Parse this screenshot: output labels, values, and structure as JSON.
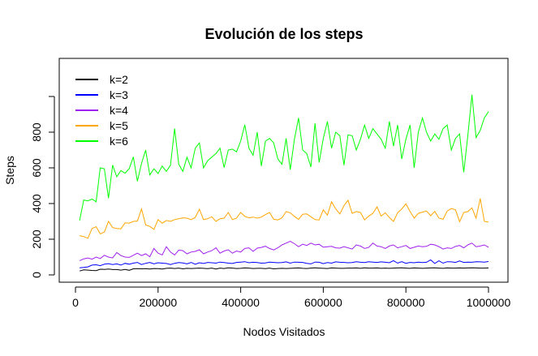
{
  "chart_data": {
    "type": "line",
    "title": "Evolución de los steps",
    "xlabel": "Nodos Visitados",
    "ylabel": "Steps",
    "xlim": [
      10000,
      1000000
    ],
    "ylim": [
      0,
      1050
    ],
    "x_ticks": [
      0,
      200000,
      400000,
      600000,
      800000,
      1000000
    ],
    "x_tick_labels": [
      "0",
      "200000",
      "400000",
      "600000",
      "800000",
      "1000000"
    ],
    "y_ticks": [
      0,
      200,
      400,
      600,
      800,
      1000
    ],
    "y_tick_labels": [
      "0",
      "200",
      "400",
      "600",
      "800",
      ""
    ],
    "grid": false,
    "legend_position": "top-left",
    "x": [
      10000,
      20000,
      30000,
      40000,
      50000,
      60000,
      70000,
      80000,
      90000,
      100000,
      110000,
      120000,
      130000,
      140000,
      150000,
      160000,
      170000,
      180000,
      190000,
      200000,
      210000,
      220000,
      230000,
      240000,
      250000,
      260000,
      270000,
      280000,
      290000,
      300000,
      310000,
      320000,
      330000,
      340000,
      350000,
      360000,
      370000,
      380000,
      390000,
      400000,
      410000,
      420000,
      430000,
      440000,
      450000,
      460000,
      470000,
      480000,
      490000,
      500000,
      510000,
      520000,
      530000,
      540000,
      550000,
      560000,
      570000,
      580000,
      590000,
      600000,
      610000,
      620000,
      630000,
      640000,
      650000,
      660000,
      670000,
      680000,
      690000,
      700000,
      710000,
      720000,
      730000,
      740000,
      750000,
      760000,
      770000,
      780000,
      790000,
      800000,
      810000,
      820000,
      830000,
      840000,
      850000,
      860000,
      870000,
      880000,
      890000,
      900000,
      910000,
      920000,
      930000,
      940000,
      950000,
      960000,
      970000,
      980000,
      990000,
      1000000
    ],
    "series": [
      {
        "name": "k=2",
        "color": "#000000",
        "values": [
          22,
          28,
          27,
          25,
          24,
          32,
          31,
          33,
          30,
          30,
          27,
          31,
          26,
          34,
          35,
          34,
          35,
          33,
          36,
          35,
          33,
          37,
          38,
          36,
          38,
          34,
          37,
          36,
          37,
          38,
          37,
          35,
          38,
          33,
          38,
          36,
          40,
          38,
          36,
          37,
          39,
          38,
          36,
          37,
          37,
          35,
          38,
          34,
          36,
          37,
          36,
          37,
          38,
          39,
          37,
          36,
          38,
          40,
          38,
          37,
          36,
          39,
          38,
          37,
          37,
          38,
          38,
          39,
          37,
          40,
          38,
          38,
          39,
          37,
          38,
          37,
          38,
          39,
          40,
          38,
          37,
          39,
          38,
          37,
          38,
          39,
          40,
          38,
          37,
          39,
          38,
          38,
          39,
          38,
          39,
          40,
          39,
          38,
          38,
          39
        ]
      },
      {
        "name": "k=3",
        "color": "#0000FF",
        "values": [
          40,
          42,
          45,
          55,
          57,
          52,
          60,
          63,
          58,
          62,
          55,
          65,
          60,
          66,
          70,
          58,
          65,
          70,
          62,
          68,
          66,
          64,
          58,
          65,
          69,
          67,
          62,
          70,
          60,
          68,
          64,
          70,
          68,
          66,
          72,
          69,
          66,
          64,
          70,
          72,
          74,
          68,
          71,
          69,
          66,
          67,
          72,
          70,
          68,
          69,
          73,
          66,
          72,
          71,
          70,
          65,
          62,
          72,
          71,
          63,
          69,
          66,
          73,
          71,
          70,
          68,
          69,
          74,
          71,
          69,
          74,
          72,
          70,
          73,
          71,
          68,
          80,
          66,
          74,
          65,
          70,
          68,
          72,
          69,
          71,
          84,
          64,
          79,
          66,
          74,
          73,
          70,
          78,
          70,
          72,
          71,
          74,
          73,
          72,
          75
        ]
      },
      {
        "name": "k=4",
        "color": "#A020F0",
        "values": [
          80,
          90,
          95,
          88,
          100,
          92,
          110,
          100,
          95,
          125,
          108,
          100,
          98,
          110,
          122,
          108,
          118,
          102,
          148,
          122,
          112,
          158,
          128,
          112,
          139,
          136,
          118,
          128,
          132,
          141,
          118,
          128,
          136,
          152,
          122,
          134,
          141,
          122,
          134,
          128,
          148,
          152,
          132,
          150,
          154,
          161,
          148,
          140,
          152,
          168,
          178,
          188,
          175,
          158,
          172,
          165,
          178,
          168,
          172,
          155,
          158,
          160,
          152,
          150,
          158,
          152,
          145,
          168,
          162,
          148,
          154,
          178,
          162,
          158,
          148,
          162,
          168,
          152,
          158,
          165,
          148,
          155,
          162,
          158,
          160,
          172,
          168,
          158,
          145,
          152,
          148,
          160,
          165,
          152,
          168,
          178,
          158,
          162,
          168,
          155
        ]
      },
      {
        "name": "k=5",
        "color": "#FFA500",
        "values": [
          220,
          215,
          205,
          260,
          270,
          230,
          240,
          300,
          265,
          260,
          258,
          292,
          290,
          300,
          302,
          370,
          280,
          272,
          255,
          310,
          290,
          305,
          300,
          310,
          315,
          320,
          318,
          310,
          322,
          368,
          310,
          315,
          326,
          300,
          315,
          318,
          350,
          310,
          318,
          350,
          328,
          320,
          324,
          318,
          324,
          338,
          350,
          312,
          308,
          320,
          355,
          348,
          328,
          312,
          340,
          342,
          326,
          310,
          308,
          365,
          335,
          410,
          370,
          342,
          388,
          418,
          345,
          355,
          350,
          308,
          330,
          345,
          382,
          330,
          348,
          322,
          300,
          348,
          370,
          398,
          356,
          318,
          345,
          352,
          358,
          332,
          356,
          318,
          312,
          358,
          372,
          365,
          298,
          350,
          355,
          376,
          318,
          428,
          300,
          296
        ]
      },
      {
        "name": "k=6",
        "color": "#00FF00",
        "values": [
          305,
          420,
          415,
          425,
          410,
          600,
          595,
          430,
          615,
          550,
          585,
          570,
          595,
          662,
          525,
          625,
          700,
          560,
          595,
          568,
          610,
          580,
          615,
          820,
          620,
          580,
          660,
          600,
          710,
          740,
          600,
          640,
          660,
          680,
          710,
          602,
          700,
          705,
          690,
          750,
          842,
          710,
          670,
          800,
          610,
          750,
          765,
          740,
          650,
          620,
          765,
          590,
          760,
          880,
          700,
          680,
          605,
          850,
          630,
          765,
          860,
          710,
          800,
          780,
          615,
          785,
          780,
          700,
          760,
          840,
          765,
          820,
          790,
          760,
          710,
          860,
          722,
          840,
          650,
          760,
          840,
          600,
          800,
          880,
          800,
          750,
          790,
          760,
          820,
          840,
          700,
          765,
          790,
          575,
          780,
          1010,
          770,
          810,
          880,
          915
        ]
      }
    ]
  }
}
